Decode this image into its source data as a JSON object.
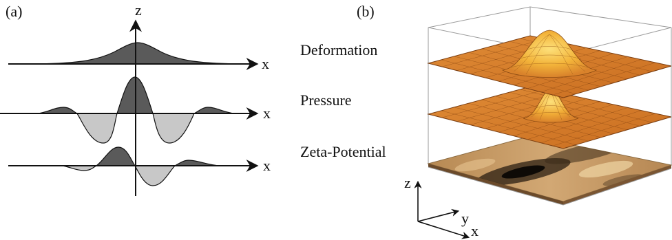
{
  "panel_a": {
    "label": "(a)",
    "axis_z": "z",
    "axis_x_top": "x",
    "axis_x_middle": "x",
    "axis_x_bottom": "x"
  },
  "panel_b": {
    "label": "(b)",
    "layer_deformation": "Deformation",
    "layer_pressure": "Pressure",
    "layer_zeta": "Zeta-Potential",
    "axis_z": "z",
    "axis_y": "y",
    "axis_x": "x"
  },
  "colors": {
    "fill_positive": "#5a5a5a",
    "fill_negative": "#c8c8c8",
    "surface_orange": "#d9822b",
    "surface_peak": "#f6c640",
    "zeta_base": "#c49a63",
    "zeta_dark": "#1a140e"
  }
}
